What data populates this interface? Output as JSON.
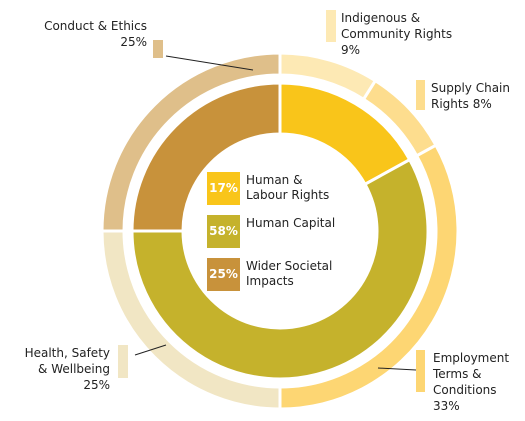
{
  "chart_data": {
    "type": "nested-donut",
    "rings": [
      {
        "categories": [
          "Human & Labour Rights",
          "Human Capital",
          "Wider Societal Impacts"
        ],
        "values": [
          17,
          58,
          25
        ],
        "value_labels": [
          "17%",
          "58%",
          "25%"
        ],
        "colors": [
          "#f9c51a",
          "#c5b22c",
          "#c8923b"
        ]
      },
      {
        "categories": [
          "Indigenous & Community Rights",
          "Supply Chain Rights",
          "Employment Terms & Conditions",
          "Health, Safety & Wellbeing",
          "Conduct & Ethics"
        ],
        "values": [
          9,
          8,
          33,
          25,
          25
        ],
        "value_labels": [
          "9%",
          "8%",
          "33%",
          "25%",
          "25%"
        ],
        "colors": [
          "#fde9b4",
          "#fddd8e",
          "#fdd673",
          "#f1e6c4",
          "#dfbf8a"
        ]
      }
    ]
  }
}
